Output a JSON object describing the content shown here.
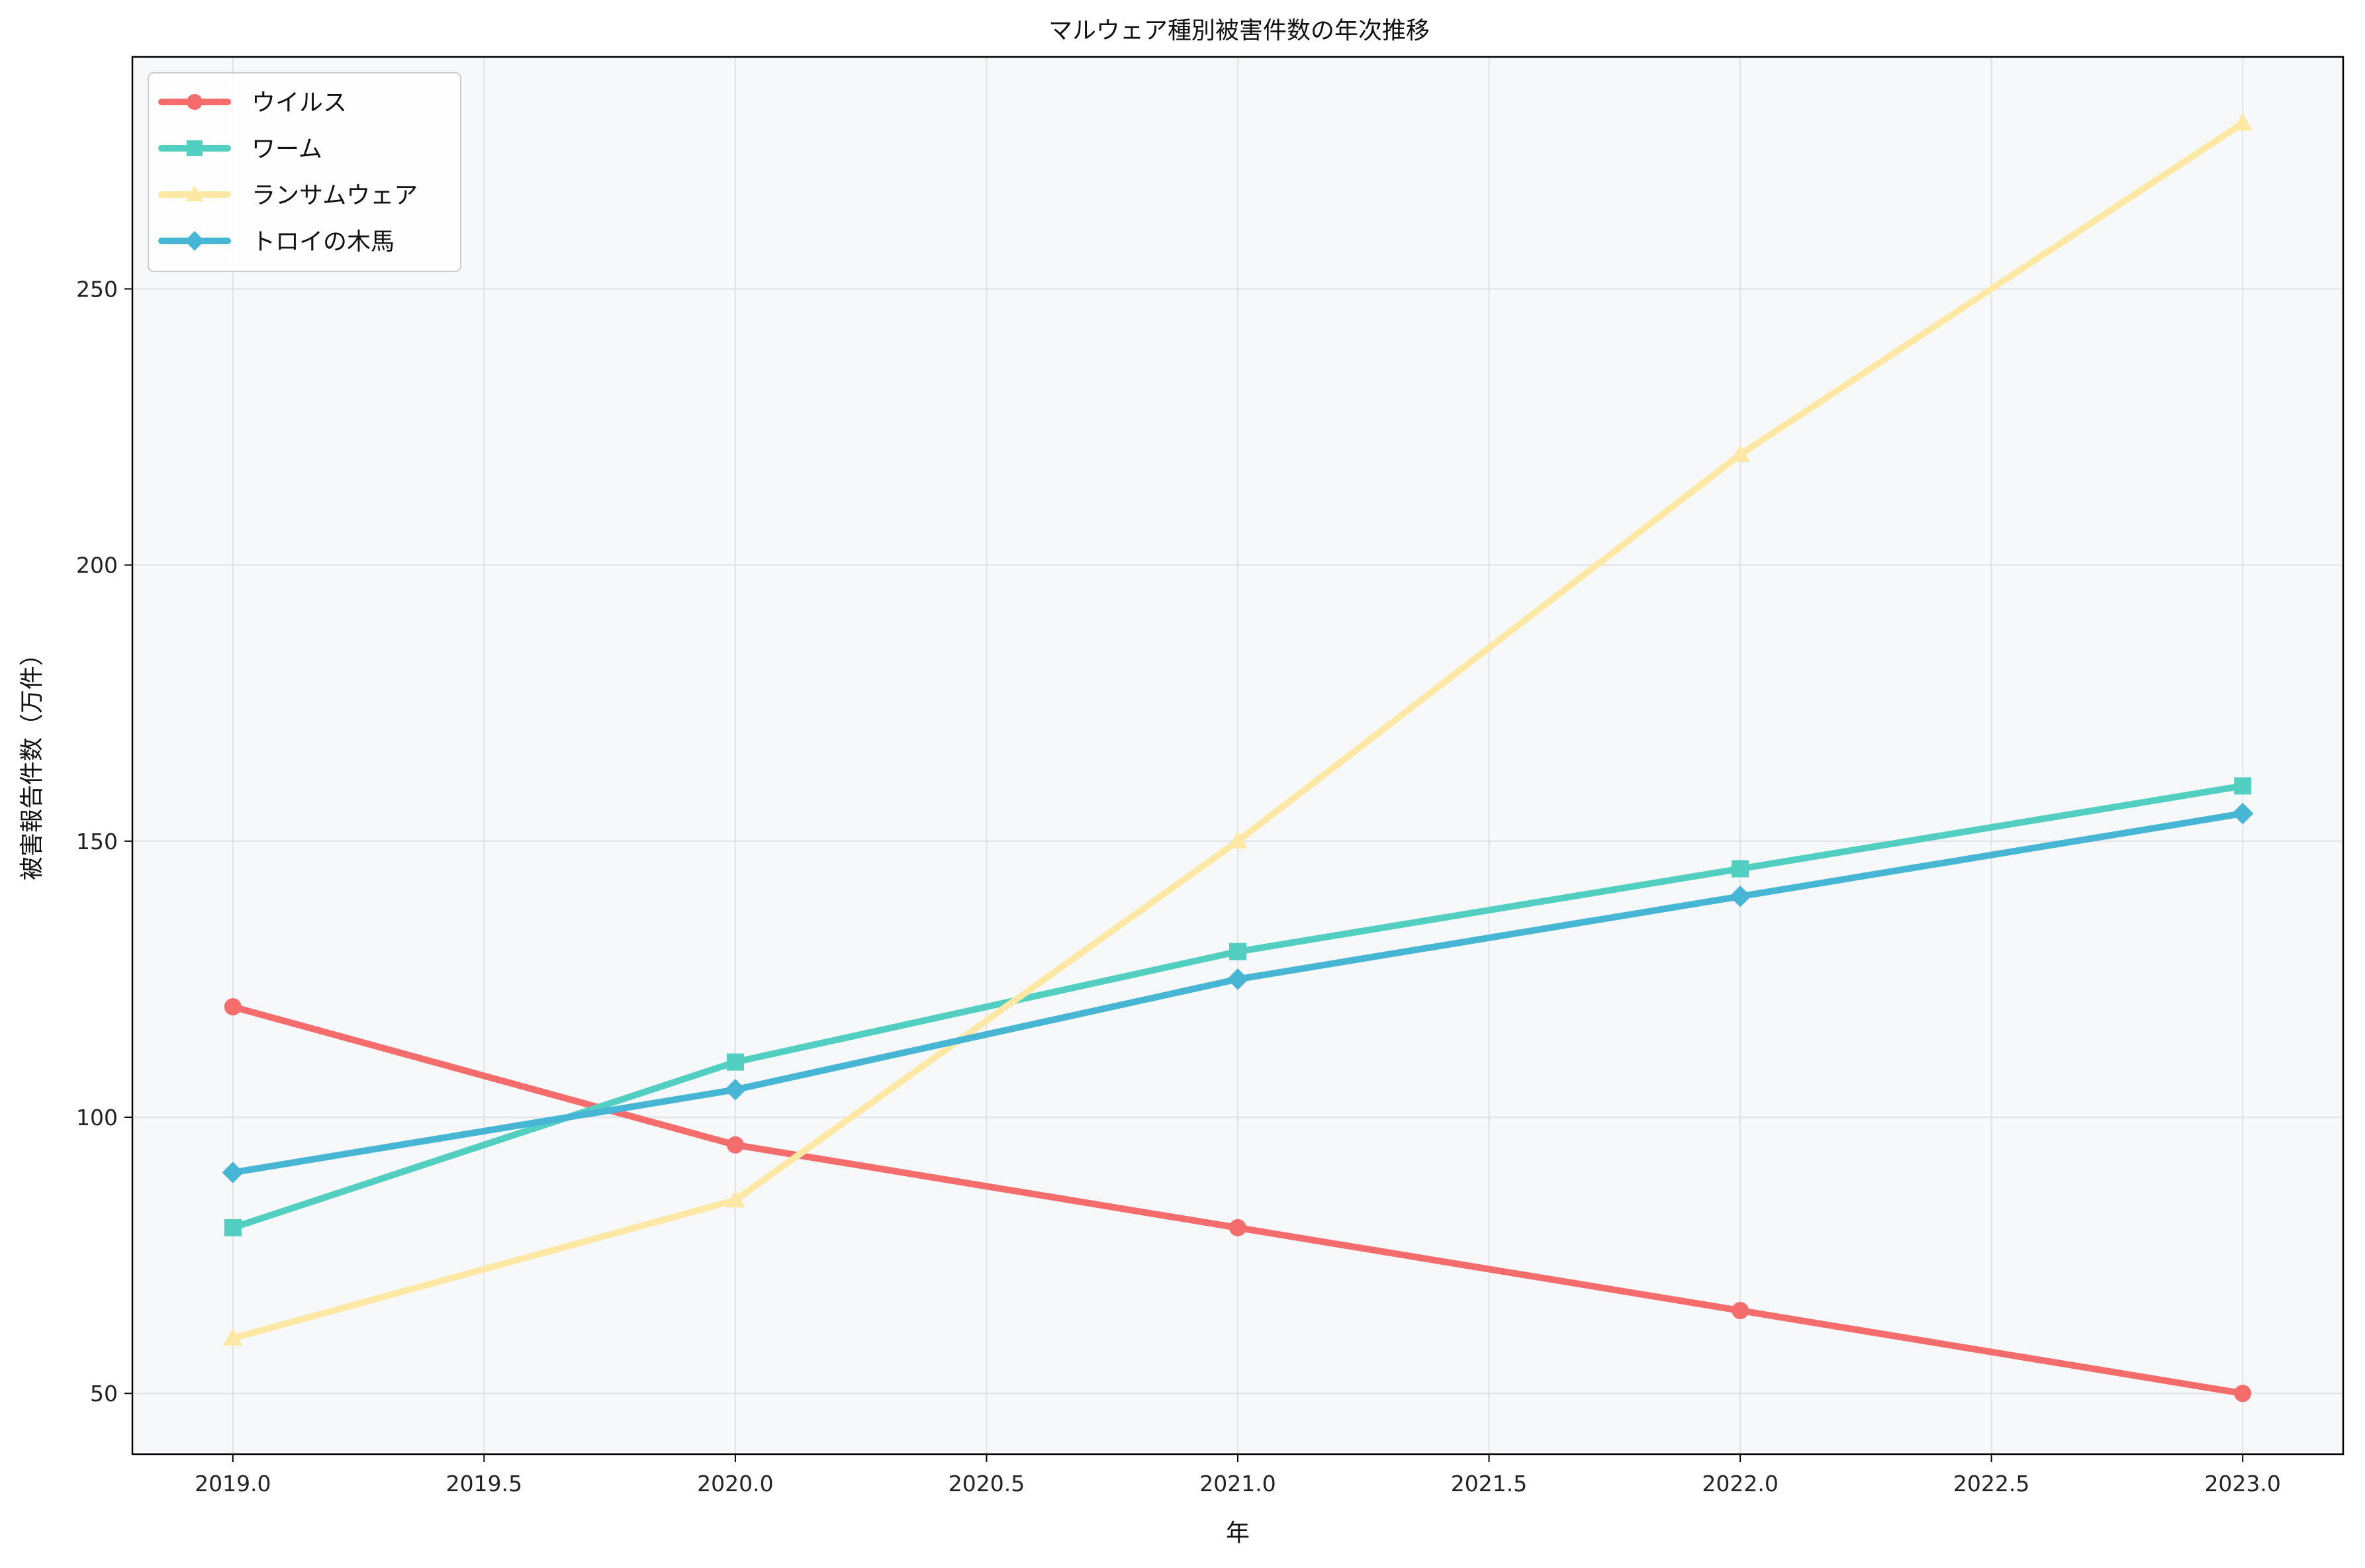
{
  "colors": {
    "background": "#ffffff",
    "plot_background": "#f7f8fa",
    "grid": "#d9dce1",
    "axis": "#000000"
  },
  "chart_data": {
    "type": "line",
    "title": "マルウェア種別被害件数の年次推移",
    "xlabel": "年",
    "ylabel": "被害報告件数（万件）",
    "xlim": [
      2018.8,
      2023.2
    ],
    "ylim": [
      39,
      292
    ],
    "x_ticks": [
      2019.0,
      2019.5,
      2020.0,
      2020.5,
      2021.0,
      2021.5,
      2022.0,
      2022.5,
      2023.0
    ],
    "y_ticks": [
      50,
      100,
      150,
      200,
      250
    ],
    "grid": true,
    "legend_position": "top-left",
    "x": [
      2019,
      2020,
      2021,
      2022,
      2023
    ],
    "series": [
      {
        "name": "ウイルス",
        "color": "#f46c6b",
        "marker": "circle",
        "values": [
          120,
          95,
          80,
          65,
          50
        ]
      },
      {
        "name": "ワーム",
        "color": "#52cfc1",
        "marker": "square",
        "values": [
          80,
          110,
          130,
          145,
          160
        ]
      },
      {
        "name": "ランサムウェア",
        "color": "#fde8a5",
        "marker": "triangle",
        "values": [
          60,
          85,
          150,
          220,
          280
        ]
      },
      {
        "name": "トロイの木馬",
        "color": "#47b5d4",
        "marker": "diamond",
        "values": [
          90,
          105,
          125,
          140,
          155
        ]
      }
    ]
  }
}
